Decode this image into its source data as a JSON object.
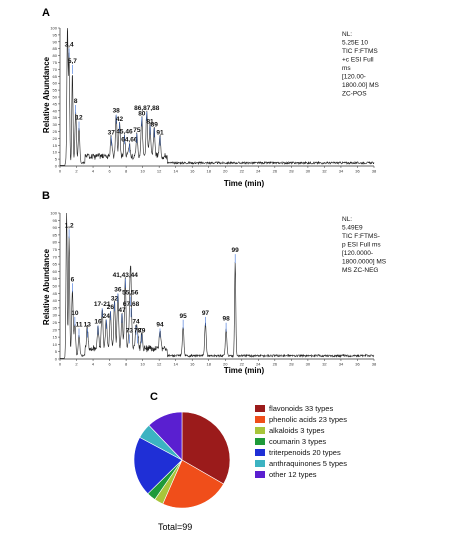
{
  "panels": {
    "a_label": "A",
    "b_label": "B",
    "c_label": "C"
  },
  "chart_data": [
    {
      "type": "line",
      "panel": "A",
      "xlabel": "Time (min)",
      "ylabel": "Relative Abundance",
      "xlim": [
        0,
        38
      ],
      "ylim": [
        0,
        100
      ],
      "xticks": [
        "0",
        "2",
        "4",
        "6",
        "8",
        "10",
        "12",
        "14",
        "16",
        "18",
        "20",
        "22",
        "24",
        "26",
        "28",
        "30",
        "32",
        "34",
        "36",
        "38"
      ],
      "yticks": [
        "0",
        "5",
        "10",
        "15",
        "20",
        "25",
        "30",
        "35",
        "40",
        "45",
        "50",
        "55",
        "60",
        "65",
        "70",
        "75",
        "80",
        "85",
        "90",
        "95",
        "100"
      ],
      "info": [
        "NL:",
        "5.25E 10",
        "TIC F:FTMS",
        "+c ESI Full",
        "ms",
        "[120.00-",
        "1800.00] MS",
        "ZC-POS"
      ],
      "peaks": [
        {
          "x": 0.9,
          "y": 100,
          "label": ""
        },
        {
          "x": 1.1,
          "y": 78,
          "label": "3,4"
        },
        {
          "x": 1.5,
          "y": 66,
          "label": "5,7"
        },
        {
          "x": 1.9,
          "y": 37,
          "label": "8"
        },
        {
          "x": 2.3,
          "y": 25,
          "label": "12"
        },
        {
          "x": 6.2,
          "y": 14,
          "label": "37"
        },
        {
          "x": 6.8,
          "y": 30,
          "label": "38"
        },
        {
          "x": 7.2,
          "y": 24,
          "label": "42"
        },
        {
          "x": 7.8,
          "y": 15,
          "label": "45,46"
        },
        {
          "x": 8.4,
          "y": 9,
          "label": "64,66"
        },
        {
          "x": 9.3,
          "y": 16,
          "label": "75"
        },
        {
          "x": 9.9,
          "y": 28,
          "label": "80"
        },
        {
          "x": 10.5,
          "y": 32,
          "label": "86,87,88"
        },
        {
          "x": 10.9,
          "y": 22,
          "label": "81"
        },
        {
          "x": 11.4,
          "y": 20,
          "label": "89"
        },
        {
          "x": 12.1,
          "y": 14,
          "label": "91"
        }
      ]
    },
    {
      "type": "line",
      "panel": "B",
      "xlabel": "Time (min)",
      "ylabel": "Relative Abundance",
      "xlim": [
        0,
        38
      ],
      "ylim": [
        0,
        100
      ],
      "xticks": [
        "0",
        "2",
        "4",
        "6",
        "8",
        "10",
        "12",
        "14",
        "16",
        "18",
        "20",
        "22",
        "24",
        "26",
        "28",
        "30",
        "32",
        "34",
        "36",
        "38"
      ],
      "yticks": [
        "0",
        "5",
        "10",
        "15",
        "20",
        "25",
        "30",
        "35",
        "40",
        "45",
        "50",
        "55",
        "60",
        "65",
        "70",
        "75",
        "80",
        "85",
        "90",
        "95",
        "100"
      ],
      "info": [
        "NL:",
        "5.49E9",
        "TIC F:FTMS-",
        "p ESI Full ms",
        "[120.0000-",
        "1800.0000] MS",
        "MS ZC-NEG"
      ],
      "peaks": [
        {
          "x": 0.8,
          "y": 100,
          "label": ""
        },
        {
          "x": 1.1,
          "y": 82,
          "label": "1,2"
        },
        {
          "x": 1.5,
          "y": 45,
          "label": "6"
        },
        {
          "x": 1.8,
          "y": 22,
          "label": "10"
        },
        {
          "x": 2.3,
          "y": 14,
          "label": "11"
        },
        {
          "x": 3.3,
          "y": 14,
          "label": "13"
        },
        {
          "x": 4.6,
          "y": 16,
          "label": "16"
        },
        {
          "x": 5.1,
          "y": 28,
          "label": "17-21"
        },
        {
          "x": 5.6,
          "y": 20,
          "label": "24"
        },
        {
          "x": 6.1,
          "y": 26,
          "label": "26"
        },
        {
          "x": 6.6,
          "y": 32,
          "label": "32"
        },
        {
          "x": 7.0,
          "y": 38,
          "label": "36"
        },
        {
          "x": 7.5,
          "y": 24,
          "label": "47"
        },
        {
          "x": 7.9,
          "y": 48,
          "label": "41,43,44"
        },
        {
          "x": 8.5,
          "y": 36,
          "label": "55,56"
        },
        {
          "x": 8.6,
          "y": 28,
          "label": "67,68"
        },
        {
          "x": 8.4,
          "y": 10,
          "label": "73"
        },
        {
          "x": 9.2,
          "y": 16,
          "label": "74"
        },
        {
          "x": 9.4,
          "y": 10,
          "label": "78"
        },
        {
          "x": 9.9,
          "y": 10,
          "label": "79"
        },
        {
          "x": 12.1,
          "y": 14,
          "label": "94"
        },
        {
          "x": 14.9,
          "y": 20,
          "label": "95"
        },
        {
          "x": 17.6,
          "y": 22,
          "label": "97"
        },
        {
          "x": 20.1,
          "y": 18,
          "label": "98"
        },
        {
          "x": 21.2,
          "y": 65,
          "label": "99"
        }
      ]
    },
    {
      "type": "pie",
      "panel": "C",
      "total_label": "Total=99",
      "slices": [
        {
          "name": "flavonoids 33 types",
          "value": 33,
          "color": "#9b1b1b"
        },
        {
          "name": "phenolic acids 23 types",
          "value": 23,
          "color": "#f04e1a"
        },
        {
          "name": "alkaloids 3 types",
          "value": 3,
          "color": "#a8c53a"
        },
        {
          "name": "coumarin 3 types",
          "value": 3,
          "color": "#1e9a3a"
        },
        {
          "name": "triterpenoids 20 types",
          "value": 20,
          "color": "#1f2fd6"
        },
        {
          "name": "anthraquinones 5 types",
          "value": 5,
          "color": "#3cb3c2"
        },
        {
          "name": "other 12 types",
          "value": 12,
          "color": "#5a1fd0"
        }
      ]
    }
  ]
}
